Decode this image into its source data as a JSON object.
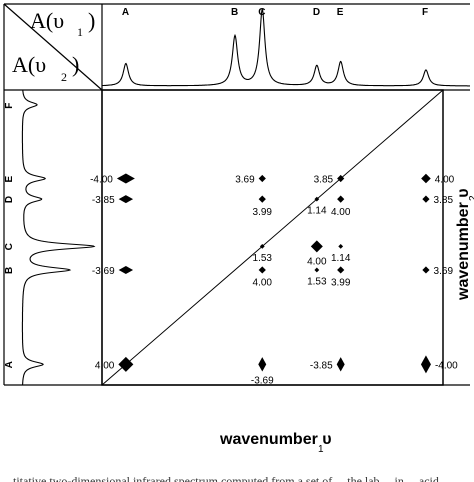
{
  "corner": {
    "label_top": "A(υ",
    "label_top_sub": "1",
    "label_bottom": "A(υ",
    "label_bottom_sub": "2",
    "close_paren": ")"
  },
  "top_peak_labels": [
    "A",
    "B",
    "C",
    "D",
    "E",
    "F"
  ],
  "side_peak_labels": [
    "A",
    "B",
    "C",
    "D",
    "E",
    "F"
  ],
  "x_axis_label": "wavenumber υ",
  "x_axis_label_sub": "1",
  "y_axis_label": "wavenumber υ",
  "y_axis_label_sub": "2",
  "caption_fragment": "...titative two-dimensional infrared spectrum computed from a set of ... the lab ... in ... acid",
  "peak_positions": {
    "A": 0.07,
    "B": 0.39,
    "C": 0.47,
    "D": 0.63,
    "E": 0.7,
    "F": 0.95
  },
  "top_spectrum_heights": {
    "A": 0.28,
    "B": 0.62,
    "C": 0.95,
    "D": 0.25,
    "E": 0.3,
    "F": 0.2
  },
  "side_spectrum_heights": {
    "A": 0.28,
    "B": 0.62,
    "C": 0.95,
    "D": 0.25,
    "E": 0.3,
    "F": 0.2
  },
  "chart_data": {
    "type": "scatter",
    "description_of_axes": "2D correlation map, x = wavenumber v1, y = wavenumber v2",
    "cross_peaks": [
      {
        "x": "A",
        "y": "E",
        "value": "-4.00",
        "size": 1.0
      },
      {
        "x": "A",
        "y": "D",
        "value": "-3.85",
        "size": 0.8
      },
      {
        "x": "A",
        "y": "B",
        "value": "-3.69",
        "size": 0.8
      },
      {
        "x": "A",
        "y": "A",
        "value": "4.00",
        "size": 1.25
      },
      {
        "x": "C",
        "y": "E",
        "value": "3.69",
        "size": 0.6
      },
      {
        "x": "C",
        "y": "C",
        "value": "1.53",
        "size": 0.4
      },
      {
        "x": "C",
        "y": "B",
        "value": "4.00",
        "size": 0.6
      },
      {
        "x": "C",
        "y": "A",
        "value": "-3.69",
        "size": 0.8
      },
      {
        "x": "C",
        "y": "D",
        "value": "3.99",
        "size": 0.6
      },
      {
        "x": "D",
        "y": "D",
        "value": "1.14",
        "size": 0.4
      },
      {
        "x": "D",
        "y": "C",
        "value": "4.00",
        "size": 1.0
      },
      {
        "x": "D",
        "y": "B",
        "value": "1.53",
        "size": 0.4
      },
      {
        "x": "E",
        "y": "E",
        "value": "3.85",
        "size": 0.6
      },
      {
        "x": "E",
        "y": "D",
        "value": "4.00",
        "size": 0.6
      },
      {
        "x": "E",
        "y": "C",
        "value": "1.14",
        "size": 0.4
      },
      {
        "x": "E",
        "y": "B",
        "value": "3.99",
        "size": 0.6
      },
      {
        "x": "E",
        "y": "A",
        "value": "-3.85",
        "size": 0.8
      },
      {
        "x": "F",
        "y": "E",
        "value": "4.00",
        "size": 0.8
      },
      {
        "x": "F",
        "y": "D",
        "value": "3.85",
        "size": 0.6
      },
      {
        "x": "F",
        "y": "B",
        "value": "3.69",
        "size": 0.6
      },
      {
        "x": "F",
        "y": "A",
        "value": "-4.00",
        "size": 1.0
      }
    ]
  }
}
